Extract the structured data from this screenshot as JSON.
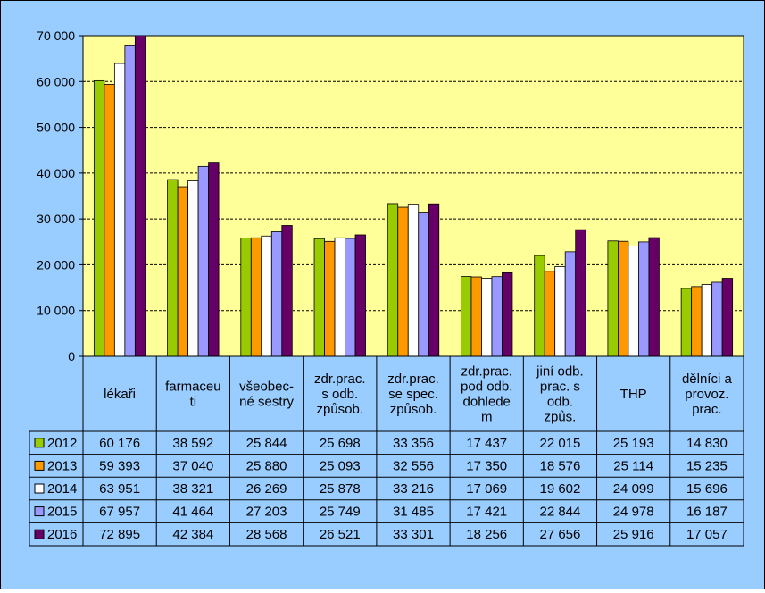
{
  "colors": {
    "background": "#99CCFF",
    "plot_area": "#FFFF99",
    "grid": "#000000",
    "series": [
      "#99CC00",
      "#FF9900",
      "#FFFFFF",
      "#9999FF",
      "#660066"
    ]
  },
  "chart_data": {
    "type": "bar",
    "categories": [
      [
        "lékaři"
      ],
      [
        "farmaceu",
        "ti"
      ],
      [
        "všeobec-",
        "né sestry"
      ],
      [
        "zdr.prac.",
        "s odb.",
        "způsob."
      ],
      [
        "zdr.prac.",
        "se spec.",
        "způsob."
      ],
      [
        "zdr.prac.",
        "pod odb.",
        "dohlede",
        "m"
      ],
      [
        "jiní odb.",
        "prac. s",
        "odb.",
        "způs."
      ],
      [
        "THP"
      ],
      [
        "dělníci a",
        "provoz.",
        "prac."
      ]
    ],
    "series": [
      {
        "name": "2012",
        "values": [
          60176,
          38592,
          25844,
          25698,
          33356,
          17437,
          22015,
          25193,
          14830
        ],
        "labels": [
          "60 176",
          "38 592",
          "25 844",
          "25 698",
          "33 356",
          "17 437",
          "22 015",
          "25 193",
          "14 830"
        ]
      },
      {
        "name": "2013",
        "values": [
          59393,
          37040,
          25880,
          25093,
          32556,
          17350,
          18576,
          25114,
          15235
        ],
        "labels": [
          "59 393",
          "37 040",
          "25 880",
          "25 093",
          "32 556",
          "17 350",
          "18 576",
          "25 114",
          "15 235"
        ]
      },
      {
        "name": "2014",
        "values": [
          63951,
          38321,
          26269,
          25878,
          33216,
          17069,
          19602,
          24099,
          15696
        ],
        "labels": [
          "63 951",
          "38 321",
          "26 269",
          "25 878",
          "33 216",
          "17 069",
          "19 602",
          "24 099",
          "15 696"
        ]
      },
      {
        "name": "2015",
        "values": [
          67957,
          41464,
          27203,
          25749,
          31485,
          17421,
          22844,
          24978,
          16187
        ],
        "labels": [
          "67 957",
          "41 464",
          "27 203",
          "25 749",
          "31 485",
          "17 421",
          "22 844",
          "24 978",
          "16 187"
        ]
      },
      {
        "name": "2016",
        "values": [
          72895,
          42384,
          28568,
          26521,
          33301,
          18256,
          27656,
          25916,
          17057
        ],
        "labels": [
          "72 895",
          "42 384",
          "28 568",
          "26 521",
          "33 301",
          "18 256",
          "27 656",
          "25 916",
          "17 057"
        ]
      }
    ],
    "yticks": [
      {
        "value": 0,
        "label": "0"
      },
      {
        "value": 10000,
        "label": "10 000"
      },
      {
        "value": 20000,
        "label": "20 000"
      },
      {
        "value": 30000,
        "label": "30 000"
      },
      {
        "value": 40000,
        "label": "40 000"
      },
      {
        "value": 50000,
        "label": "50 000"
      },
      {
        "value": 60000,
        "label": "60 000"
      },
      {
        "value": 70000,
        "label": "70 000"
      }
    ],
    "ylim": [
      0,
      70000
    ],
    "grid": true,
    "legend": "data-table",
    "title": "",
    "xlabel": "",
    "ylabel": ""
  }
}
